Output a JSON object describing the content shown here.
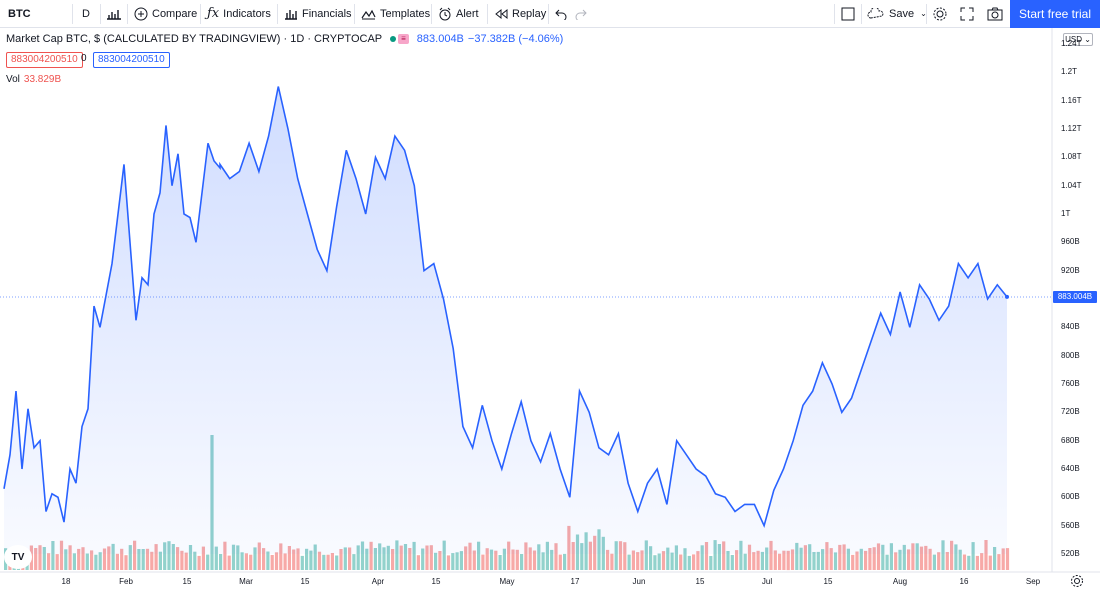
{
  "toolbar": {
    "symbol": "BTC",
    "interval": "D",
    "compare": "Compare",
    "indicators": "Indicators",
    "financials": "Financials",
    "templates": "Templates",
    "alert": "Alert",
    "replay": "Replay",
    "save": "Save",
    "trial": "Start free trial"
  },
  "legend": {
    "title": "Market Cap BTC, $ (CALCULATED BY TRADINGVIEW) · 1D · CRYPTOCAP",
    "value": "883.004B",
    "change": "−37.382B (−4.06%)",
    "input1": "883004200510",
    "input_mid": "0",
    "input2": "883004200510",
    "vol_label": "Vol",
    "vol_value": "33.829B"
  },
  "currency": "USD",
  "last_price_tag": "883.004B",
  "colors": {
    "line": "#2962ff",
    "vol_up": "#26a69a",
    "vol_down": "#ef5350",
    "accent": "#2962ff"
  },
  "chart_data": {
    "type": "area",
    "yticks": [
      "1.24T",
      "1.2T",
      "1.16T",
      "1.12T",
      "1.08T",
      "1.04T",
      "1T",
      "960B",
      "920B",
      "880B",
      "840B",
      "800B",
      "760B",
      "720B",
      "680B",
      "640B",
      "600B",
      "560B",
      "520B"
    ],
    "xticks": [
      "18",
      "Feb",
      "15",
      "Mar",
      "15",
      "Apr",
      "15",
      "May",
      "17",
      "Jun",
      "15",
      "Jul",
      "15",
      "Aug",
      "16",
      "Sep"
    ],
    "ylim": [
      520,
      1240
    ],
    "ylabel_units": "B",
    "x": [
      0,
      6,
      12,
      18,
      24,
      30,
      36,
      42,
      48,
      54,
      60,
      66,
      72,
      78,
      84,
      90,
      96,
      102,
      108,
      114,
      120,
      126,
      132,
      138,
      144,
      150,
      156,
      162,
      168,
      174,
      180,
      186,
      192,
      198,
      204,
      210,
      216
    ],
    "y": [
      612,
      660,
      750,
      640,
      725,
      670,
      680,
      580,
      605,
      600,
      565,
      640,
      620,
      700,
      725,
      870,
      840,
      885,
      930,
      1000,
      1070,
      960,
      850,
      910,
      900,
      1000,
      1030,
      1125,
      1040,
      1085,
      1000,
      995,
      960,
      1030,
      1100,
      1075,
      1065
    ],
    "y2_start_x": 216,
    "y2": [
      1070,
      1050,
      1060,
      1100,
      1060,
      1110,
      1180,
      1120,
      1050,
      1000,
      950,
      920,
      1010,
      1090,
      1050,
      1000,
      1080,
      1050,
      1110,
      1090,
      1040,
      920,
      930,
      880,
      810,
      700,
      670,
      730,
      680,
      640,
      690,
      735,
      680,
      650,
      690,
      640,
      600,
      750,
      720,
      670,
      660,
      690,
      620,
      580,
      620,
      640,
      590,
      680,
      660,
      640,
      630,
      605,
      600,
      580,
      590,
      590,
      560,
      610,
      640,
      680,
      730,
      750,
      790,
      760,
      720,
      740,
      780,
      820,
      860,
      830,
      890,
      840,
      900,
      880,
      850,
      870,
      930,
      910,
      930,
      880,
      900,
      883
    ],
    "volume": {
      "spike_index": 48,
      "note": "volume bars along bottom"
    }
  }
}
